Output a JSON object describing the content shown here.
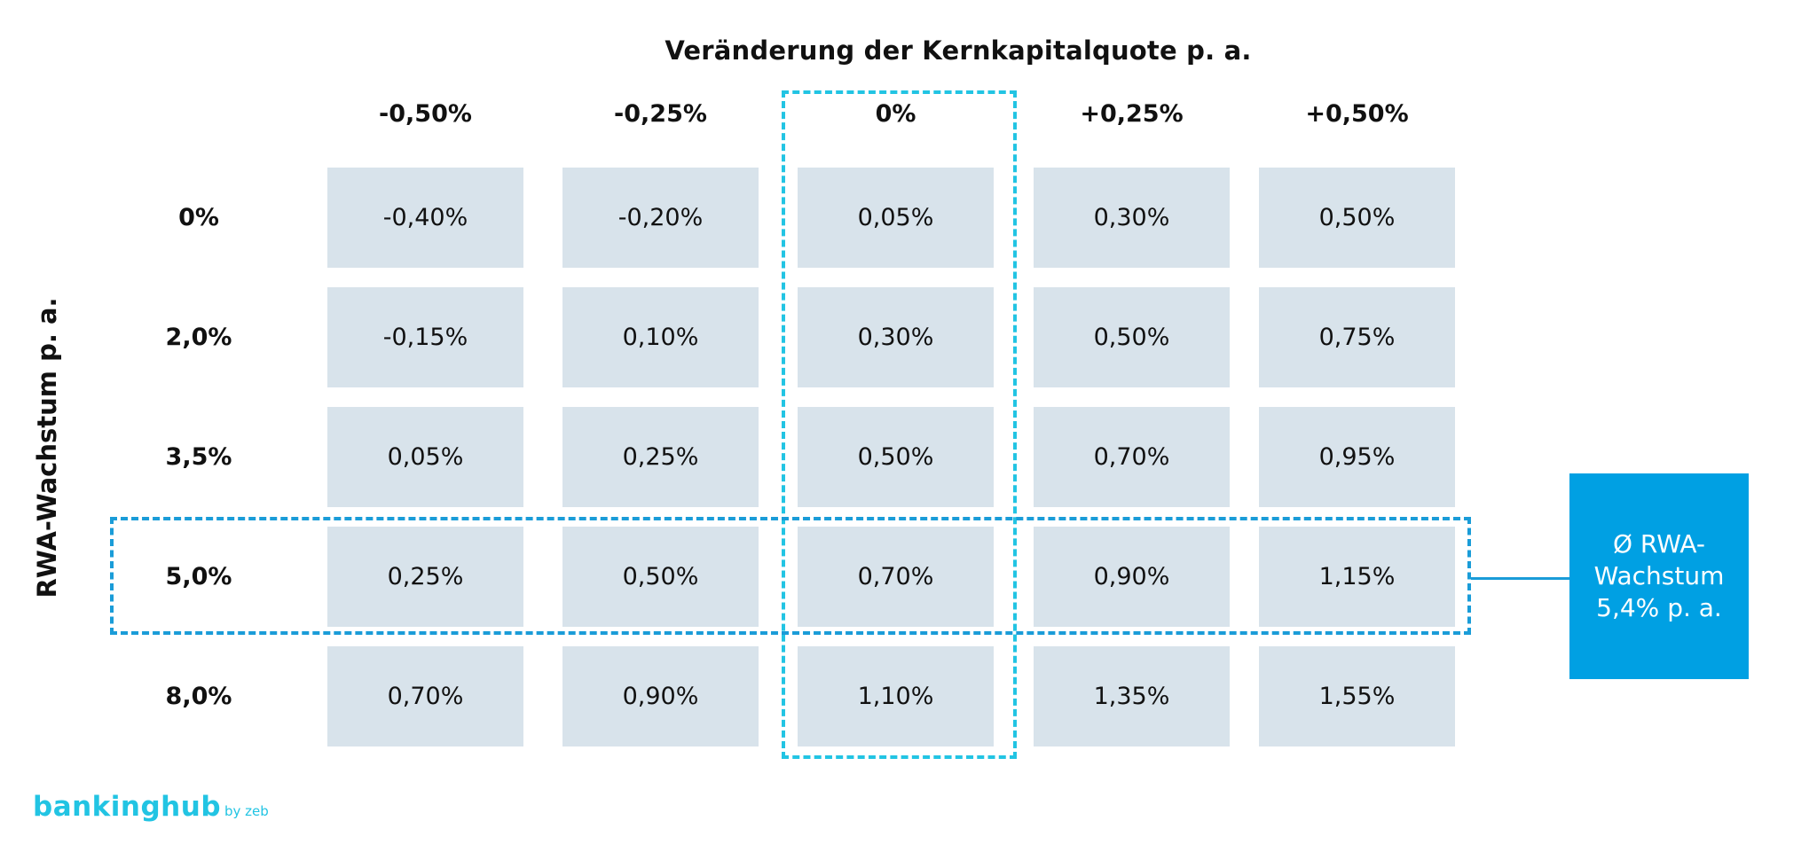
{
  "chart_data": {
    "type": "table",
    "title": "Veränderung der Kernkapitalquote p. a.",
    "ylabel": "RWA-Wachstum p. a.",
    "columns": [
      "-0,50%",
      "-0,25%",
      "0%",
      "+0,25%",
      "+0,50%"
    ],
    "rows": [
      {
        "label": "0%",
        "values": [
          "-0,40%",
          "-0,20%",
          "0,05%",
          "0,30%",
          "0,50%"
        ]
      },
      {
        "label": "2,0%",
        "values": [
          "-0,15%",
          "0,10%",
          "0,30%",
          "0,50%",
          "0,75%"
        ]
      },
      {
        "label": "3,5%",
        "values": [
          "0,05%",
          "0,25%",
          "0,50%",
          "0,70%",
          "0,95%"
        ]
      },
      {
        "label": "5,0%",
        "values": [
          "0,25%",
          "0,50%",
          "0,70%",
          "0,90%",
          "1,15%"
        ]
      },
      {
        "label": "8,0%",
        "values": [
          "0,70%",
          "0,90%",
          "1,10%",
          "1,35%",
          "1,55%"
        ]
      }
    ],
    "highlight": {
      "column": "0%",
      "row": "5,0%"
    },
    "callout": [
      "Ø RWA-",
      "Wachstum",
      "5,4% p. a."
    ]
  },
  "branding": {
    "logo_main": "bankinghub",
    "logo_by": "by zeb"
  },
  "colors": {
    "cell": "#d8e3eb",
    "highlight_column": "#22c4e3",
    "highlight_row": "#1a9cd8",
    "callout": "#00a0e3"
  }
}
